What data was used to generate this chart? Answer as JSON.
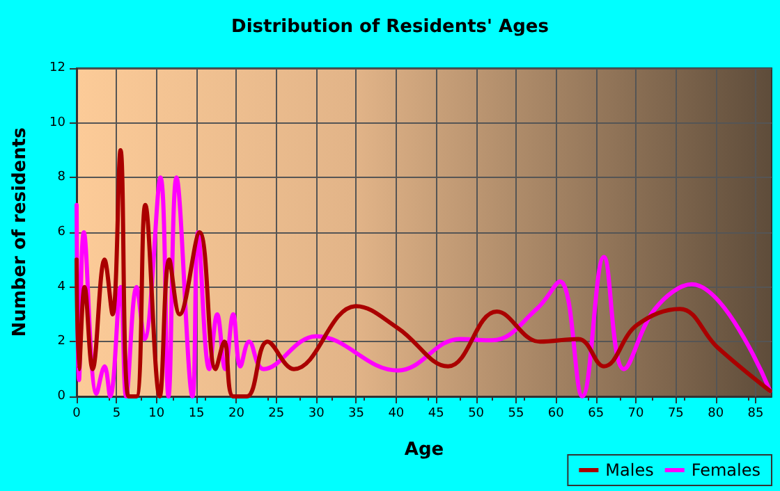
{
  "chart_data": {
    "type": "line",
    "title": "Distribution of Residents' Ages",
    "xlabel": "Age",
    "ylabel": "Number of residents",
    "xlim": [
      0,
      87
    ],
    "xticks": [
      0,
      5,
      10,
      15,
      20,
      25,
      30,
      35,
      40,
      45,
      50,
      55,
      60,
      65,
      70,
      75,
      80,
      85
    ],
    "ylim": [
      0,
      12
    ],
    "yticks": [
      0,
      2,
      4,
      6,
      8,
      10,
      12
    ],
    "grid": true,
    "legend": "bottom right",
    "marker": "none",
    "line_style": "solid",
    "series": [
      {
        "name": "Males",
        "color": "#aa0000",
        "x": [
          0,
          0.3,
          1,
          2,
          3.5,
          4.5,
          5.5,
          6.5,
          7.5,
          8.6,
          10.4,
          11.6,
          12.9,
          15.4,
          17.4,
          18.5,
          19.6,
          21.3,
          23.9,
          27.2,
          35,
          40.2,
          46.5,
          52.6,
          58,
          62.8,
          66,
          70.1,
          75.5,
          80.2,
          86.8
        ],
        "values": [
          5,
          1,
          4,
          1,
          5,
          3,
          9,
          0,
          0,
          7,
          0,
          5,
          3,
          6,
          1,
          2,
          0,
          0,
          2,
          1,
          3.3,
          2.5,
          1.1,
          3.1,
          2,
          2.1,
          1.1,
          2.6,
          3.2,
          1.8,
          0.2
        ]
      },
      {
        "name": "Females",
        "color": "#ff00ff",
        "x": [
          0,
          0.3,
          0.9,
          2.5,
          3.5,
          4.2,
          5.5,
          6.2,
          7.5,
          8.5,
          10.5,
          11.5,
          12.5,
          14.5,
          15.2,
          16.6,
          17.6,
          18.6,
          19.6,
          20.5,
          21.6,
          23.4,
          30,
          40.2,
          48,
          52,
          57.6,
          60.5,
          63.3,
          66,
          68.5,
          72.4,
          77,
          86.8
        ],
        "values": [
          7,
          0.6,
          6,
          0.1,
          1.1,
          0,
          4,
          0,
          4,
          2.1,
          8,
          0,
          8,
          0,
          6,
          1,
          3,
          1,
          3,
          1.1,
          2,
          1,
          2.2,
          0.95,
          2.1,
          2.05,
          3.2,
          4.2,
          0,
          5.1,
          1,
          3.2,
          4.1,
          0.2
        ]
      }
    ]
  }
}
